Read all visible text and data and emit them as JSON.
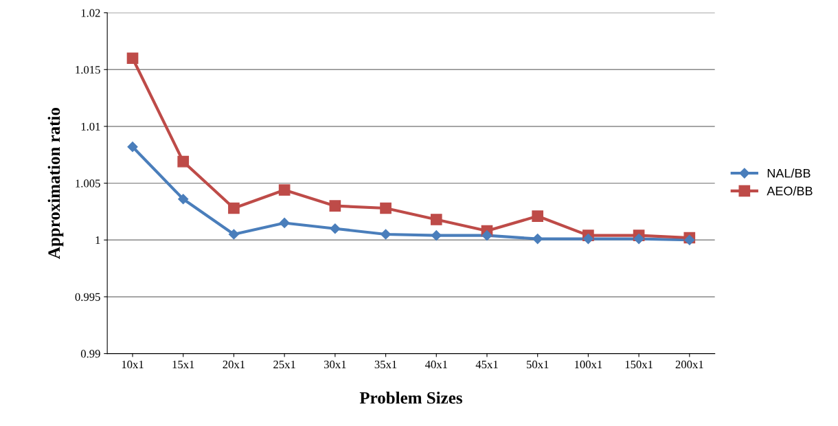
{
  "chart_data": {
    "type": "line",
    "xlabel": "Problem Sizes",
    "ylabel": "Approximation ratio",
    "categories": [
      "10x1",
      "15x1",
      "20x1",
      "25x1",
      "30x1",
      "35x1",
      "40x1",
      "45x1",
      "50x1",
      "100x1",
      "150x1",
      "200x1"
    ],
    "series": [
      {
        "name": "NAL/BB",
        "color": "#4a7ebb",
        "marker": "diamond",
        "values": [
          1.0082,
          1.0036,
          1.0005,
          1.0015,
          1.001,
          1.0005,
          1.0004,
          1.0004,
          1.0001,
          1.0001,
          1.0001,
          1.0
        ]
      },
      {
        "name": "AEO/BB",
        "color": "#be4b48",
        "marker": "square",
        "values": [
          1.016,
          1.0069,
          1.0028,
          1.0044,
          1.003,
          1.0028,
          1.0018,
          1.0008,
          1.0021,
          1.0004,
          1.0004,
          1.0002
        ]
      }
    ],
    "ylim": [
      0.99,
      1.02
    ],
    "yticks": [
      0.99,
      0.995,
      1,
      1.005,
      1.01,
      1.015,
      1.02
    ],
    "grid": "y",
    "legend": "right",
    "line_style": "solid"
  }
}
